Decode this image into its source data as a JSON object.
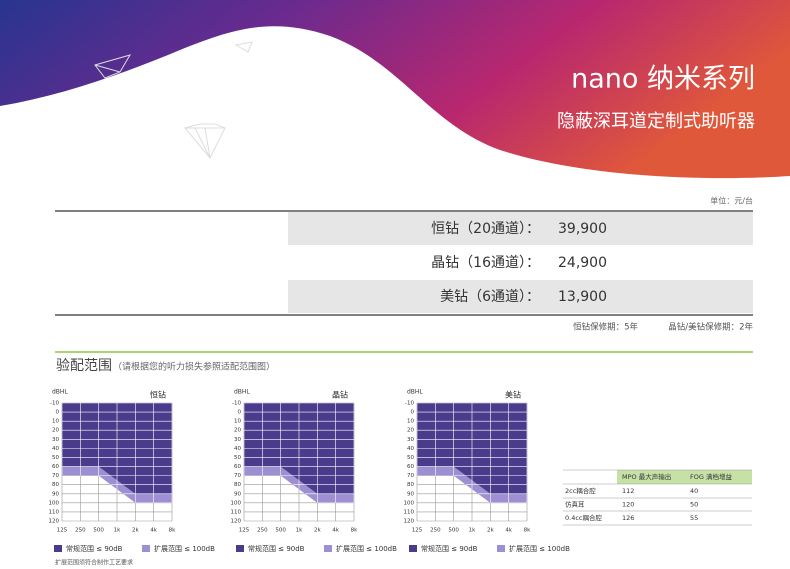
{
  "header": {
    "title": "nano 纳米系列",
    "subtitle": "隐蔽深耳道定制式助听器"
  },
  "unit": "单位：元/台",
  "prices": {
    "rows": [
      {
        "label": "恒钻（20通道）：",
        "price": "39,900"
      },
      {
        "label": "晶钻（16通道）：",
        "price": "24,900"
      },
      {
        "label": "美钻（6通道）：",
        "price": "13,900"
      }
    ]
  },
  "warranty": [
    "恒钻保修期：5年",
    "晶钻/美钻保修期：2年"
  ],
  "fitting": {
    "title": "验配范围",
    "note": "（请根据您的听力损失参照适配范围图）"
  },
  "audiograms": [
    {
      "title": "恒钻",
      "y_label": "dBHL",
      "frequencies": [
        "125",
        "250",
        "500",
        "1k",
        "2k",
        "4k",
        "8k"
      ],
      "ylim": [
        -10,
        120
      ],
      "yticks": [
        -10,
        0,
        10,
        20,
        30,
        40,
        50,
        60,
        70,
        80,
        90,
        100,
        110,
        120
      ],
      "regular_limit": [
        60,
        60,
        60,
        75,
        90,
        90,
        90
      ],
      "extended_limit": [
        70,
        70,
        70,
        85,
        100,
        100,
        100
      ],
      "legend": [
        "常规范围 ≤ 90dB",
        "扩展范围 ≤ 100dB"
      ]
    },
    {
      "title": "晶钻",
      "y_label": "dBHL",
      "frequencies": [
        "125",
        "250",
        "500",
        "1k",
        "2k",
        "4k",
        "8k"
      ],
      "ylim": [
        -10,
        120
      ],
      "yticks": [
        -10,
        0,
        10,
        20,
        30,
        40,
        50,
        60,
        70,
        80,
        90,
        100,
        110,
        120
      ],
      "regular_limit": [
        60,
        60,
        60,
        75,
        90,
        90,
        90
      ],
      "extended_limit": [
        70,
        70,
        70,
        85,
        100,
        100,
        100
      ],
      "legend": [
        "常规范围 ≤ 90dB",
        "扩展范围 ≤ 100dB"
      ]
    },
    {
      "title": "美钻",
      "y_label": "dBHL",
      "frequencies": [
        "125",
        "250",
        "500",
        "1k",
        "2k",
        "4k",
        "8k"
      ],
      "ylim": [
        -10,
        120
      ],
      "yticks": [
        -10,
        0,
        10,
        20,
        30,
        40,
        50,
        60,
        70,
        80,
        90,
        100,
        110,
        120
      ],
      "regular_limit": [
        60,
        60,
        60,
        75,
        90,
        90,
        90
      ],
      "extended_limit": [
        70,
        70,
        70,
        85,
        100,
        100,
        100
      ],
      "legend": [
        "常规范围 ≤ 90dB",
        "扩展范围 ≤ 100dB"
      ]
    }
  ],
  "footnote": "扩展范围须符合制作工艺要求",
  "specs": {
    "columns": [
      "MPO 最大声输出",
      "FOG 满档增益"
    ],
    "rows": [
      [
        "2cc耦合腔",
        112,
        40
      ],
      [
        "仿真耳",
        120,
        50
      ],
      [
        "0.4cc耦合腔",
        126,
        55
      ]
    ]
  }
}
